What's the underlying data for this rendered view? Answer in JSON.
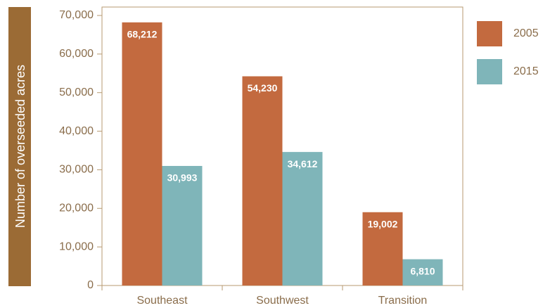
{
  "chart_data": {
    "type": "bar",
    "y_label": "Number of overseeded acres",
    "categories": [
      "Southeast",
      "Southwest",
      "Transition"
    ],
    "series": [
      {
        "name": "2005",
        "color": "#c36a3f",
        "values": [
          68212,
          54230,
          19002
        ],
        "value_labels": [
          "68,212",
          "54,230",
          "19,002"
        ]
      },
      {
        "name": "2015",
        "color": "#7fb5b9",
        "values": [
          30993,
          34612,
          6810
        ],
        "value_labels": [
          "30,993",
          "34,612",
          "6,810"
        ]
      }
    ],
    "ylim": [
      0,
      70000
    ],
    "yticks": [
      0,
      {
        "value": 10000,
        "label": "10,000"
      },
      {
        "value": 20000,
        "label": "20,000"
      },
      {
        "value": 30000,
        "label": "30,000"
      },
      {
        "value": 40000,
        "label": "40,000"
      },
      {
        "value": 50000,
        "label": "50,000"
      },
      {
        "value": 60000,
        "label": "60,000"
      },
      {
        "value": 70000,
        "label": "70,000"
      }
    ],
    "legend": "right"
  }
}
